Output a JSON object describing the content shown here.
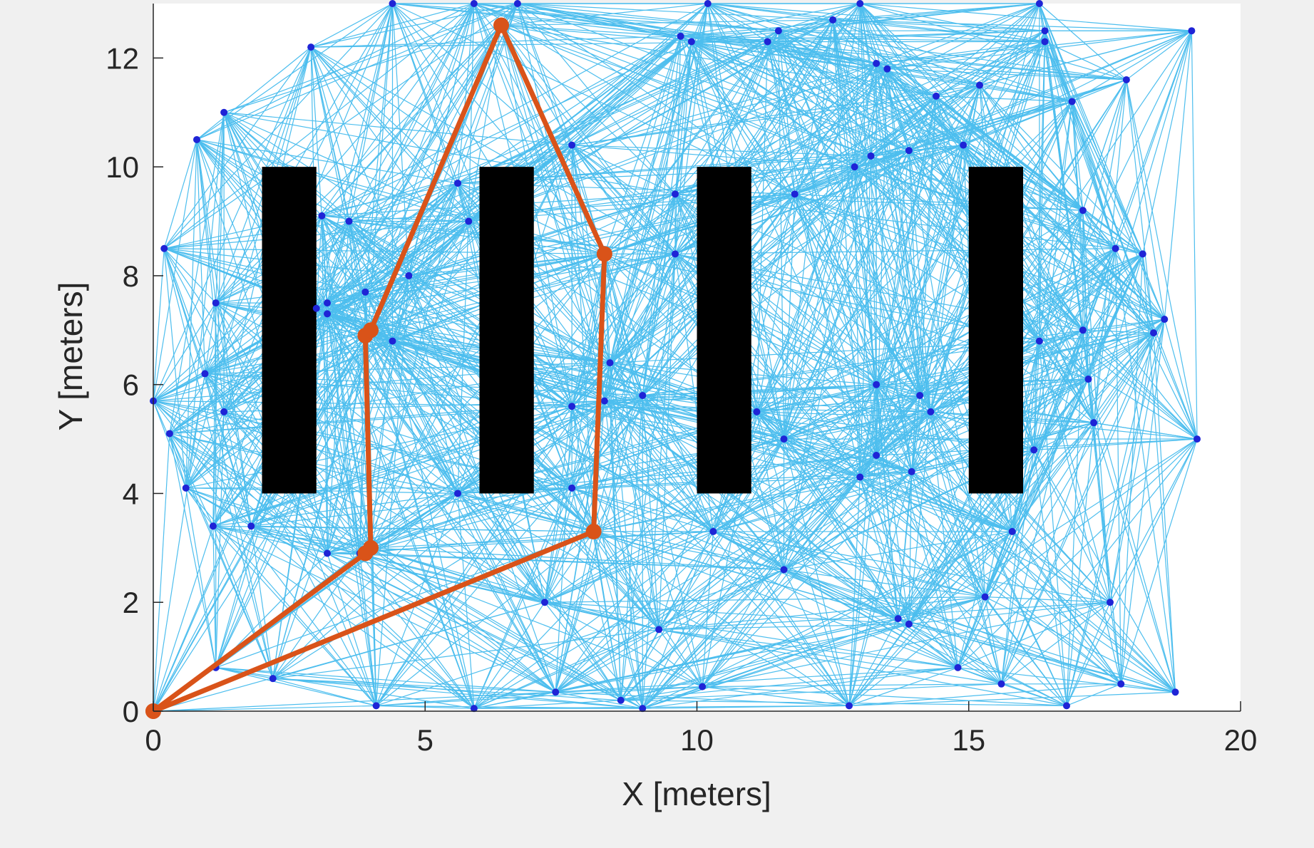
{
  "chart_data": {
    "type": "scatter",
    "title": "",
    "xlabel": "X [meters]",
    "ylabel": "Y [meters]",
    "xlim": [
      0,
      20
    ],
    "ylim": [
      0,
      13
    ],
    "xticks": [
      "0",
      "5",
      "10",
      "15",
      "20"
    ],
    "yticks": [
      "0",
      "2",
      "4",
      "6",
      "8",
      "10",
      "12"
    ],
    "colors": {
      "roadmap_edge": "#4DBEEE",
      "node": "#1f24d6",
      "path": "#D95319",
      "obstacle": "#000000",
      "axes_background": "#ffffff",
      "figure_background": "#f0f0f0"
    },
    "obstacles": [
      {
        "x": [
          2,
          3
        ],
        "y": [
          4,
          10
        ]
      },
      {
        "x": [
          6,
          7
        ],
        "y": [
          4,
          10
        ]
      },
      {
        "x": [
          10,
          11
        ],
        "y": [
          4,
          10
        ]
      },
      {
        "x": [
          15,
          16
        ],
        "y": [
          4,
          10
        ]
      }
    ],
    "nodes": [
      [
        0,
        0
      ],
      [
        0.2,
        8.5
      ],
      [
        0.3,
        5.1
      ],
      [
        0.6,
        4.1
      ],
      [
        0.8,
        10.5
      ],
      [
        1.1,
        3.4
      ],
      [
        1.15,
        7.5
      ],
      [
        0.95,
        6.2
      ],
      [
        1.3,
        11.0
      ],
      [
        1.3,
        5.5
      ],
      [
        1.8,
        3.4
      ],
      [
        1.15,
        0.8
      ],
      [
        2.2,
        0.6
      ],
      [
        2.9,
        12.2
      ],
      [
        3.1,
        9.1
      ],
      [
        3.0,
        7.4
      ],
      [
        3.2,
        7.5
      ],
      [
        3.2,
        7.3
      ],
      [
        3.2,
        2.9
      ],
      [
        3.6,
        9.0
      ],
      [
        3.8,
        2.9
      ],
      [
        4.0,
        3.0
      ],
      [
        3.95,
        7.0
      ],
      [
        3.95,
        6.9
      ],
      [
        3.9,
        7.7
      ],
      [
        4.4,
        6.8
      ],
      [
        4.1,
        0.1
      ],
      [
        4.7,
        8.0
      ],
      [
        5.6,
        9.7
      ],
      [
        5.6,
        4.0
      ],
      [
        5.8,
        9.0
      ],
      [
        5.9,
        13.0
      ],
      [
        6.4,
        12.6
      ],
      [
        6.7,
        13.0
      ],
      [
        7.2,
        2.0
      ],
      [
        7.4,
        0.35
      ],
      [
        7.7,
        5.6
      ],
      [
        7.7,
        4.1
      ],
      [
        7.7,
        10.4
      ],
      [
        8.1,
        3.3
      ],
      [
        8.3,
        8.4
      ],
      [
        8.3,
        5.7
      ],
      [
        8.4,
        6.4
      ],
      [
        8.6,
        0.2
      ],
      [
        9.0,
        0.05
      ],
      [
        9.0,
        5.8
      ],
      [
        9.3,
        1.5
      ],
      [
        9.6,
        9.5
      ],
      [
        9.6,
        8.4
      ],
      [
        9.7,
        12.4
      ],
      [
        9.9,
        12.3
      ],
      [
        10.1,
        0.45
      ],
      [
        10.3,
        3.3
      ],
      [
        11.1,
        5.5
      ],
      [
        11.3,
        12.3
      ],
      [
        11.5,
        12.5
      ],
      [
        11.6,
        2.6
      ],
      [
        11.6,
        5.0
      ],
      [
        11.8,
        9.5
      ],
      [
        12.5,
        12.7
      ],
      [
        12.9,
        10.0
      ],
      [
        13.0,
        13.0
      ],
      [
        13.0,
        4.3
      ],
      [
        13.2,
        10.2
      ],
      [
        13.3,
        11.9
      ],
      [
        13.3,
        6.0
      ],
      [
        13.3,
        4.7
      ],
      [
        13.5,
        11.8
      ],
      [
        13.7,
        1.7
      ],
      [
        13.9,
        1.6
      ],
      [
        13.9,
        10.3
      ],
      [
        13.95,
        4.4
      ],
      [
        14.1,
        5.8
      ],
      [
        14.3,
        5.5
      ],
      [
        14.4,
        11.3
      ],
      [
        14.8,
        0.8
      ],
      [
        14.9,
        10.4
      ],
      [
        15.2,
        11.5
      ],
      [
        15.3,
        2.1
      ],
      [
        15.6,
        0.5
      ],
      [
        15.8,
        3.3
      ],
      [
        16.2,
        4.8
      ],
      [
        16.3,
        6.8
      ],
      [
        16.4,
        12.5
      ],
      [
        16.4,
        12.3
      ],
      [
        16.8,
        0.1
      ],
      [
        16.9,
        11.2
      ],
      [
        17.1,
        9.2
      ],
      [
        17.1,
        7.0
      ],
      [
        17.2,
        6.1
      ],
      [
        17.3,
        5.3
      ],
      [
        17.6,
        2.0
      ],
      [
        17.7,
        8.5
      ],
      [
        17.8,
        0.5
      ],
      [
        17.9,
        11.6
      ],
      [
        18.2,
        8.4
      ],
      [
        18.4,
        6.95
      ],
      [
        18.6,
        7.2
      ],
      [
        18.8,
        0.35
      ],
      [
        19.1,
        12.5
      ],
      [
        19.2,
        5.0
      ],
      [
        12.8,
        0.1
      ],
      [
        5.9,
        0.05
      ],
      [
        4.4,
        13.0
      ],
      [
        10.2,
        13.0
      ],
      [
        16.3,
        13.0
      ],
      [
        0.0,
        5.7
      ]
    ],
    "path": [
      [
        0,
        0
      ],
      [
        3.9,
        2.9
      ],
      [
        4.0,
        3.0
      ],
      [
        3.9,
        6.9
      ],
      [
        4.0,
        7.0
      ],
      [
        6.4,
        12.6
      ],
      [
        8.3,
        8.4
      ],
      [
        8.1,
        3.3
      ],
      [
        0,
        0
      ]
    ]
  }
}
